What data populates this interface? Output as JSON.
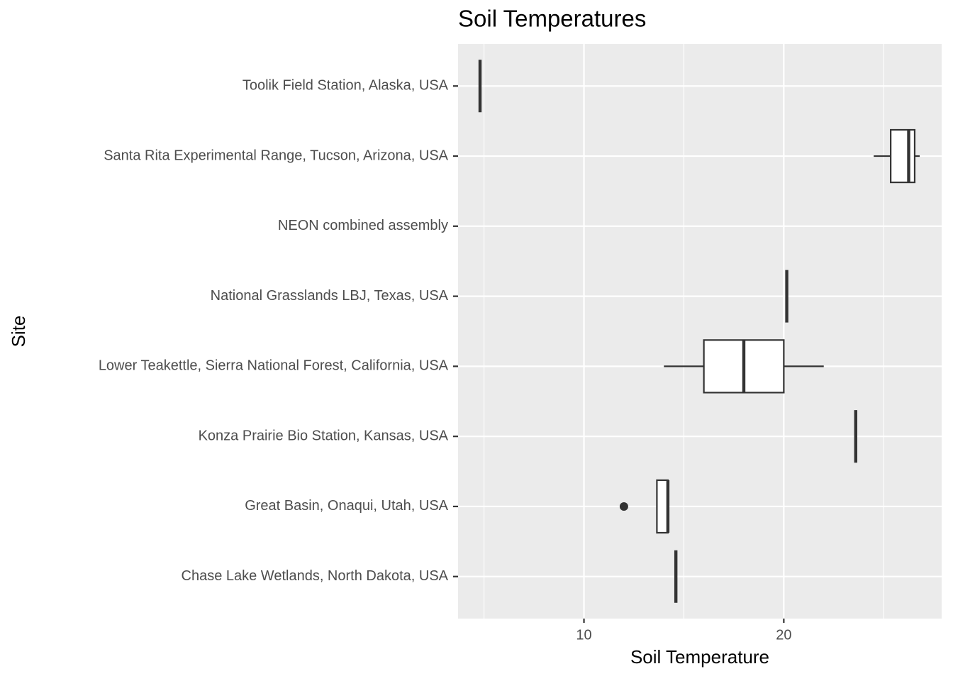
{
  "chart_data": {
    "type": "boxplot",
    "orientation": "horizontal",
    "title": "Soil Temperatures",
    "xlabel": "Soil Temperature",
    "ylabel": "Site",
    "categories": [
      "Toolik Field Station, Alaska, USA",
      "Santa Rita Experimental Range, Tucson, Arizona, USA",
      "NEON combined assembly",
      "National Grasslands LBJ, Texas, USA",
      "Lower Teakettle, Sierra National Forest, California, USA",
      "Konza Prairie Bio Station, Kansas, USA",
      "Great Basin, Onaqui, Utah, USA",
      "Chase Lake Wetlands, North Dakota, USA"
    ],
    "boxes": [
      {
        "min": 4.8,
        "q1": 4.8,
        "median": 4.8,
        "q3": 4.8,
        "max": 4.8,
        "outliers": []
      },
      {
        "min": 24.5,
        "q1": 25.35,
        "median": 26.25,
        "q3": 26.55,
        "max": 26.8,
        "outliers": []
      },
      null,
      {
        "min": 20.15,
        "q1": 20.15,
        "median": 20.15,
        "q3": 20.15,
        "max": 20.15,
        "outliers": []
      },
      {
        "min": 14,
        "q1": 16,
        "median": 18,
        "q3": 20,
        "max": 22,
        "outliers": []
      },
      {
        "min": 23.6,
        "q1": 23.6,
        "median": 23.6,
        "q3": 23.6,
        "max": 23.6,
        "outliers": []
      },
      {
        "min": 13.65,
        "q1": 13.65,
        "median": 14.2,
        "q3": 14.2,
        "max": 14.2,
        "outliers": [
          12
        ]
      },
      {
        "min": 14.6,
        "q1": 14.6,
        "median": 14.6,
        "q3": 14.6,
        "max": 14.6,
        "outliers": []
      }
    ],
    "box_fill": "#ffffff",
    "box_stroke": "#333333",
    "xlim": [
      3.7,
      27.9
    ],
    "xticks": [
      10,
      20
    ],
    "xminor": [
      5,
      15,
      25
    ],
    "grid": true,
    "panel_color": "#ebebeb"
  }
}
